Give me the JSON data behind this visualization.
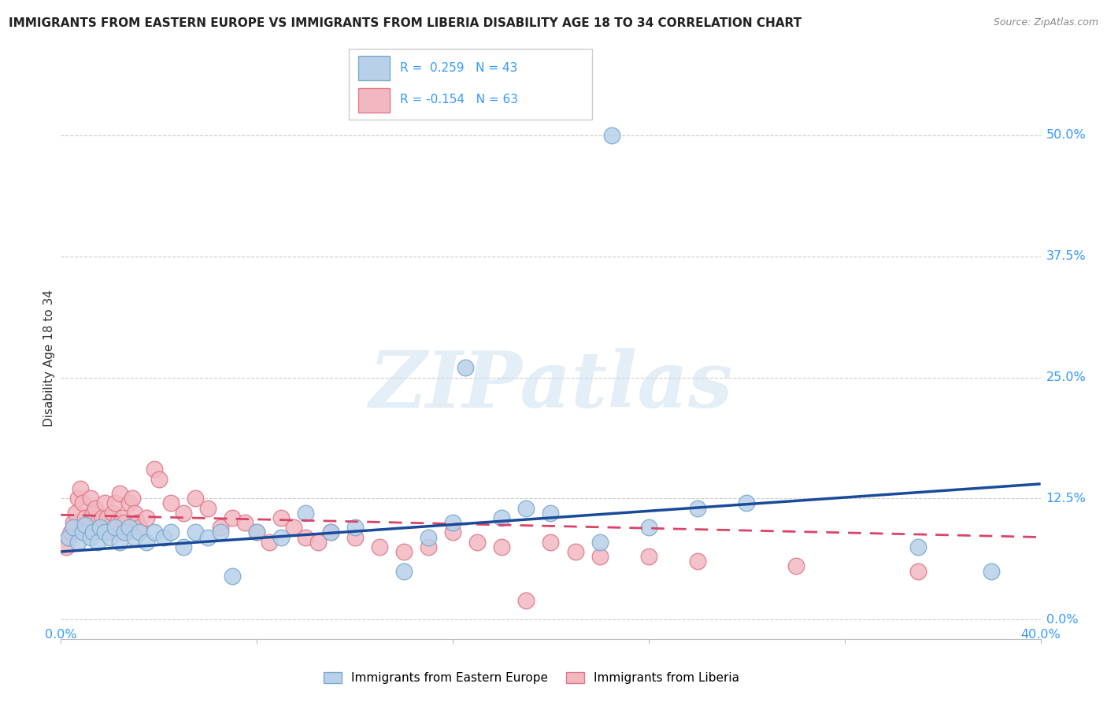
{
  "title": "IMMIGRANTS FROM EASTERN EUROPE VS IMMIGRANTS FROM LIBERIA DISABILITY AGE 18 TO 34 CORRELATION CHART",
  "source": "Source: ZipAtlas.com",
  "ylabel": "Disability Age 18 to 34",
  "ytick_values": [
    0.0,
    12.5,
    25.0,
    37.5,
    50.0
  ],
  "xlim": [
    0.0,
    40.0
  ],
  "ylim": [
    -2.0,
    56.0
  ],
  "blue_R": 0.259,
  "blue_N": 43,
  "pink_R": -0.154,
  "pink_N": 63,
  "blue_color": "#b8d0e8",
  "blue_edge": "#7aaacf",
  "blue_trend_color": "#1a4a9a",
  "pink_color": "#f2b8c2",
  "pink_edge": "#e07888",
  "pink_trend_color": "#d94466",
  "legend_label_blue": "Immigrants from Eastern Europe",
  "legend_label_pink": "Immigrants from Liberia",
  "blue_scatter_x": [
    0.3,
    0.5,
    0.7,
    0.9,
    1.0,
    1.2,
    1.3,
    1.5,
    1.6,
    1.8,
    2.0,
    2.2,
    2.4,
    2.6,
    2.8,
    3.0,
    3.2,
    3.5,
    3.8,
    4.2,
    4.5,
    5.0,
    5.5,
    6.0,
    6.5,
    7.0,
    8.0,
    9.0,
    10.0,
    11.0,
    12.0,
    14.0,
    15.0,
    16.0,
    18.0,
    19.0,
    20.0,
    22.0,
    24.0,
    26.0,
    28.0,
    35.0,
    38.0
  ],
  "blue_scatter_y": [
    8.5,
    9.5,
    8.0,
    9.0,
    9.8,
    8.5,
    9.0,
    8.0,
    9.5,
    9.0,
    8.5,
    9.5,
    8.0,
    9.0,
    9.5,
    8.5,
    9.0,
    8.0,
    9.0,
    8.5,
    9.0,
    7.5,
    9.0,
    8.5,
    9.0,
    4.5,
    9.0,
    8.5,
    11.0,
    9.0,
    9.5,
    5.0,
    8.5,
    10.0,
    10.5,
    11.5,
    11.0,
    8.0,
    9.5,
    11.5,
    12.0,
    7.5,
    5.0
  ],
  "pink_scatter_x": [
    0.2,
    0.3,
    0.4,
    0.5,
    0.6,
    0.7,
    0.8,
    0.9,
    1.0,
    1.1,
    1.2,
    1.3,
    1.4,
    1.5,
    1.6,
    1.7,
    1.8,
    1.9,
    2.0,
    2.1,
    2.2,
    2.3,
    2.4,
    2.5,
    2.6,
    2.7,
    2.8,
    2.9,
    3.0,
    3.1,
    3.2,
    3.5,
    3.8,
    4.0,
    4.5,
    5.0,
    5.5,
    6.0,
    6.5,
    7.0,
    7.5,
    8.0,
    8.5,
    9.0,
    9.5,
    10.0,
    10.5,
    11.0,
    12.0,
    13.0,
    14.0,
    15.0,
    16.0,
    17.0,
    18.0,
    19.0,
    20.0,
    21.0,
    22.0,
    24.0,
    26.0,
    30.0,
    35.0
  ],
  "pink_scatter_y": [
    7.5,
    8.5,
    9.0,
    10.0,
    11.0,
    12.5,
    13.5,
    12.0,
    10.5,
    9.5,
    12.5,
    11.0,
    11.5,
    10.0,
    9.5,
    10.5,
    12.0,
    10.5,
    9.0,
    11.0,
    12.0,
    10.0,
    13.0,
    10.5,
    10.0,
    9.0,
    12.0,
    12.5,
    11.0,
    10.0,
    9.5,
    10.5,
    15.5,
    14.5,
    12.0,
    11.0,
    12.5,
    11.5,
    9.5,
    10.5,
    10.0,
    9.0,
    8.0,
    10.5,
    9.5,
    8.5,
    8.0,
    9.0,
    8.5,
    7.5,
    7.0,
    7.5,
    9.0,
    8.0,
    7.5,
    2.0,
    8.0,
    7.0,
    6.5,
    6.5,
    6.0,
    5.5,
    5.0
  ],
  "blue_outlier_x": 22.5,
  "blue_outlier_y": 50.0,
  "blue_mid_outlier_x": 16.5,
  "blue_mid_outlier_y": 26.0,
  "blue_trend_x0": 0.0,
  "blue_trend_y0": 7.0,
  "blue_trend_x1": 40.0,
  "blue_trend_y1": 14.0,
  "pink_trend_x0": 0.0,
  "pink_trend_y0": 10.8,
  "pink_trend_x1": 40.0,
  "pink_trend_y1": 8.5,
  "watermark_text": "ZIPatlas",
  "background_color": "#ffffff",
  "grid_color": "#cccccc",
  "title_fontsize": 11,
  "axis_label_color": "#3399ff",
  "text_color": "#333333"
}
